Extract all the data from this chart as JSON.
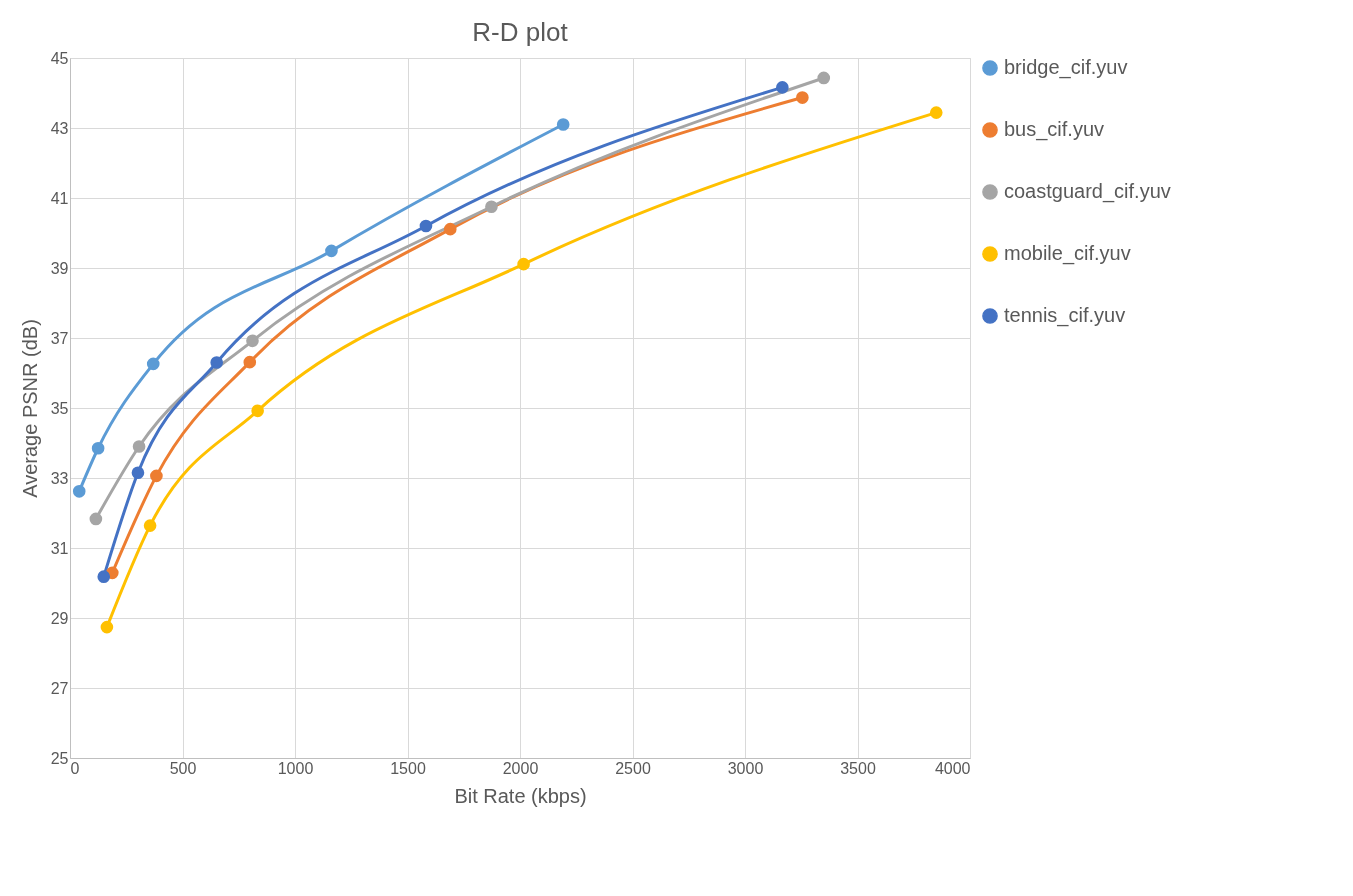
{
  "chart_data": {
    "type": "line",
    "title": "R-D plot",
    "xlabel": "Bit Rate (kbps)",
    "ylabel": "Average PSNR (dB)",
    "xlim": [
      0,
      4000
    ],
    "xticks": [
      0,
      500,
      1000,
      1500,
      2000,
      2500,
      3000,
      3500,
      4000
    ],
    "ylim": [
      25,
      45
    ],
    "yticks": [
      25,
      27,
      29,
      31,
      33,
      35,
      37,
      39,
      41,
      43,
      45
    ],
    "grid": true,
    "legend": "right",
    "marker": "circle",
    "line_style": "solid",
    "series": [
      {
        "name": "bridge_cif.yuv",
        "color": "#5b9bd5",
        "x": [
          41,
          125,
          370,
          1162,
          2192
        ],
        "values": [
          32.62,
          33.85,
          36.26,
          39.49,
          43.1
        ]
      },
      {
        "name": "bus_cif.yuv",
        "color": "#ed7d31",
        "x": [
          188,
          384,
          799,
          1690,
          3255
        ],
        "values": [
          30.29,
          33.06,
          36.31,
          40.11,
          43.87
        ]
      },
      {
        "name": "coastguard_cif.yuv",
        "color": "#a5a5a5",
        "x": [
          115,
          307,
          811,
          1873,
          3350
        ],
        "values": [
          31.83,
          33.9,
          36.92,
          40.75,
          44.43
        ]
      },
      {
        "name": "mobile_cif.yuv",
        "color": "#ffc000",
        "x": [
          164,
          356,
          834,
          2016,
          3850
        ],
        "values": [
          28.74,
          31.64,
          34.92,
          39.11,
          43.44
        ]
      },
      {
        "name": "tennis_cif.yuv",
        "color": "#4472c4",
        "x": [
          150,
          302,
          652,
          1582,
          3166
        ],
        "values": [
          30.18,
          33.15,
          36.3,
          40.2,
          44.16
        ]
      }
    ]
  }
}
